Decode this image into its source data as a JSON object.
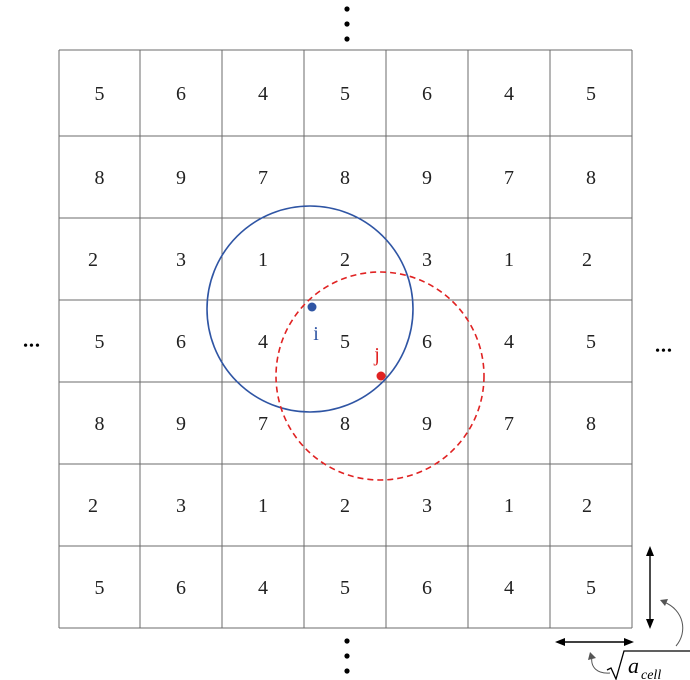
{
  "grid": {
    "rows": [
      [
        "5",
        "6",
        "4",
        "5",
        "6",
        "4",
        "5"
      ],
      [
        "8",
        "9",
        "7",
        "8",
        "9",
        "7",
        "8"
      ],
      [
        "2",
        "3",
        "1",
        "2",
        "3",
        "1",
        "2"
      ],
      [
        "5",
        "6",
        "4",
        "5",
        "6",
        "4",
        "5"
      ],
      [
        "8",
        "9",
        "7",
        "8",
        "9",
        "7",
        "8"
      ],
      [
        "2",
        "3",
        "1",
        "2",
        "3",
        "1",
        "2"
      ],
      [
        "5",
        "6",
        "4",
        "5",
        "6",
        "4",
        "5"
      ]
    ]
  },
  "particles": {
    "i": {
      "label": "i",
      "color": "#2f55a4"
    },
    "j": {
      "label": "j",
      "color": "#e02222"
    }
  },
  "ellipsis": {
    "horizontal": "•••"
  },
  "cell_size_label": {
    "base": "a",
    "subscript": "cell"
  },
  "colors": {
    "grid": "#6b6b6b",
    "circle_i": "#2f55a4",
    "circle_j": "#e02222",
    "text": "#222222"
  }
}
